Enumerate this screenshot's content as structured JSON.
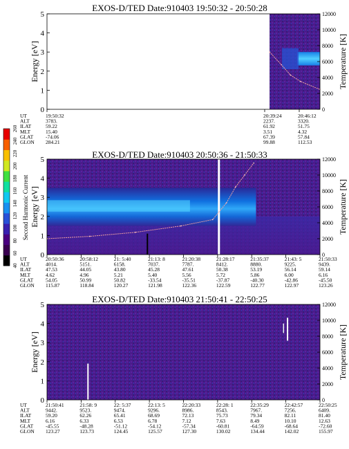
{
  "figure": {
    "colorbar": {
      "label": "Second Harmonic Current",
      "ticks": [
        "40",
        "60",
        "80",
        "100",
        "120",
        "140",
        "160",
        "180",
        "200",
        "220",
        "240",
        "260"
      ],
      "colors": [
        "#000000",
        "#3a0050",
        "#4a0080",
        "#3820b0",
        "#2850d8",
        "#1890f0",
        "#10c8f0",
        "#10e0a0",
        "#40e040",
        "#d0e820",
        "#f8c000",
        "#f86000",
        "#e80000"
      ]
    }
  },
  "chart_data": [
    {
      "type": "heatmap",
      "title": "EXOS-D/TED   Date:910403   19:50:32 - 20:50:28",
      "ylabel": "Energy [eV]",
      "y2label": "Temperature [K]",
      "ylim": [
        0,
        5
      ],
      "y2lim": [
        0,
        12000
      ],
      "yticks": [
        "0",
        "1",
        "2",
        "3",
        "4",
        "5"
      ],
      "y2ticks": [
        "0",
        "2000",
        "4000",
        "6000",
        "8000",
        "10000",
        "12000"
      ],
      "data_gap": {
        "from": "19:56",
        "to": "20:39"
      },
      "temperature_series": [
        {
          "time": "20:39:24",
          "temperature": 7200
        },
        {
          "time": "20:42:00",
          "temperature": 5600
        },
        {
          "time": "20:44:00",
          "temperature": 4300
        },
        {
          "time": "20:46:12",
          "temperature": 3500
        },
        {
          "time": "20:50:28",
          "temperature": 2500
        }
      ],
      "ephemeris": {
        "row_labels": [
          "UT",
          "ALT",
          "ILAT",
          "MLT",
          "GLAT",
          "GLON"
        ],
        "columns": [
          {
            "UT": "19:50:32",
            "ALT": "3783.",
            "ILAT": "59.22",
            "MLT": "15.40",
            "GLAT": "-74.06",
            "GLON": "284.21"
          },
          {
            "UT": "20:39:24",
            "ALT": "2237.",
            "ILAT": "61.92",
            "MLT": "3.51",
            "GLAT": "67.39",
            "GLON": "99.88"
          },
          {
            "UT": "20:46:12",
            "ALT": "3320.",
            "ILAT": "51.75",
            "MLT": "4.32",
            "GLAT": "57.84",
            "GLON": "112.53"
          }
        ]
      }
    },
    {
      "type": "heatmap",
      "title": "EXOS-D/TED   Date:910403   20:50:36 - 21:50:33",
      "ylabel": "Energy [eV]",
      "y2label": "Temperature [K]",
      "ylim": [
        0,
        5
      ],
      "y2lim": [
        0,
        12000
      ],
      "yticks": [
        "0",
        "1",
        "2",
        "3",
        "4",
        "5"
      ],
      "y2ticks": [
        "0",
        "2000",
        "4000",
        "6000",
        "8000",
        "10000",
        "12000"
      ],
      "temperature_series": [
        {
          "time": "20:50:36",
          "temperature": 2000
        },
        {
          "time": "21:00:00",
          "temperature": 2300
        },
        {
          "time": "21:10:00",
          "temperature": 2800
        },
        {
          "time": "21:20:00",
          "temperature": 3600
        },
        {
          "time": "21:27:00",
          "temperature": 4400
        },
        {
          "time": "21:30:00",
          "temperature": 6500
        },
        {
          "time": "21:32:00",
          "temperature": 8500
        },
        {
          "time": "21:34:00",
          "temperature": 10000
        },
        {
          "time": "21:36:00",
          "temperature": 11500
        }
      ],
      "ephemeris": {
        "row_labels": [
          "UT",
          "ALT",
          "ILAT",
          "MLT",
          "GLAT",
          "GLON"
        ],
        "columns": [
          {
            "UT": "20:50:36",
            "ALT": "4014.",
            "ILAT": "47.53",
            "MLT": "4.62",
            "GLAT": "54.05",
            "GLON": "115.87"
          },
          {
            "UT": "20:58:12",
            "ALT": "5151.",
            "ILAT": "44.05",
            "MLT": "4.96",
            "GLAT": "50.99",
            "GLON": "118.84"
          },
          {
            "UT": "21: 5:40",
            "ALT": "6158.",
            "ILAT": "43.80",
            "MLT": "5.21",
            "GLAT": "50.82",
            "GLON": "120.27"
          },
          {
            "UT": "21:13: 8",
            "ALT": "7037.",
            "ILAT": "45.28",
            "MLT": "5.40",
            "GLAT": "-33.54",
            "GLON": "121.98"
          },
          {
            "UT": "21:20:38",
            "ALT": "7787.",
            "ILAT": "47.61",
            "MLT": "5.56",
            "GLAT": "-35.51",
            "GLON": "122.36"
          },
          {
            "UT": "21:28:17",
            "ALT": "8412.",
            "ILAT": "50.38",
            "MLT": "5.72",
            "GLAT": "-37.87",
            "GLON": "122.59"
          },
          {
            "UT": "21:35:37",
            "ALT": "8880.",
            "ILAT": "53.19",
            "MLT": "5.86",
            "GLAT": "-40.30",
            "GLON": "122.77"
          },
          {
            "UT": "21:43: 5",
            "ALT": "9225.",
            "ILAT": "56.14",
            "MLT": "6.00",
            "GLAT": "-42.86",
            "GLON": "122.97"
          },
          {
            "UT": "21:50:33",
            "ALT": "9439.",
            "ILAT": "59.14",
            "MLT": "6.16",
            "GLAT": "-45.50",
            "GLON": "123.26"
          }
        ]
      }
    },
    {
      "type": "heatmap",
      "title": "EXOS-D/TED   Date:910403   21:50:41 - 22:50:25",
      "ylabel": "Energy [eV]",
      "y2label": "Temperature [K]",
      "ylim": [
        0,
        5
      ],
      "y2lim": [
        0,
        12000
      ],
      "yticks": [
        "0",
        "1",
        "2",
        "3",
        "4",
        "5"
      ],
      "y2ticks": [
        "0",
        "2000",
        "4000",
        "6000",
        "8000",
        "10000",
        "12000"
      ],
      "ephemeris": {
        "row_labels": [
          "UT",
          "ALT",
          "ILAT",
          "MLT",
          "GLAT",
          "GLON"
        ],
        "columns": [
          {
            "UT": "21:50:41",
            "ALT": "9442.",
            "ILAT": "59.20",
            "MLT": "6.16",
            "GLAT": "-45.55",
            "GLON": "123.27"
          },
          {
            "UT": "21:58: 9",
            "ALT": "9523.",
            "ILAT": "62.26",
            "MLT": "6.33",
            "GLAT": "-48.28",
            "GLON": "123.73"
          },
          {
            "UT": "22: 5:37",
            "ALT": "9474.",
            "ILAT": "65.41",
            "MLT": "6.53",
            "GLAT": "-51.12",
            "GLON": "124.45"
          },
          {
            "UT": "22:13: 5",
            "ALT": "9296.",
            "ILAT": "68.69",
            "MLT": "6.78",
            "GLAT": "-54.12",
            "GLON": "125.57"
          },
          {
            "UT": "22:20:33",
            "ALT": "8986.",
            "ILAT": "72.13",
            "MLT": "7.12",
            "GLAT": "-57.34",
            "GLON": "127.30"
          },
          {
            "UT": "22:28: 1",
            "ALT": "8543.",
            "ILAT": "75.73",
            "MLT": "7.63",
            "GLAT": "-60.81",
            "GLON": "130.02"
          },
          {
            "UT": "22:35:29",
            "ALT": "7967.",
            "ILAT": "79.34",
            "MLT": "8.49",
            "GLAT": "-64.59",
            "GLON": "134.44"
          },
          {
            "UT": "22:42:57",
            "ALT": "7256.",
            "ILAT": "82.11",
            "MLT": "10.10",
            "GLAT": "-68.64",
            "GLON": "142.02"
          },
          {
            "UT": "22:50:25",
            "ALT": "6409.",
            "ILAT": "81.40",
            "MLT": "12.63",
            "GLAT": "-72.60",
            "GLON": "155.97"
          }
        ]
      }
    }
  ]
}
